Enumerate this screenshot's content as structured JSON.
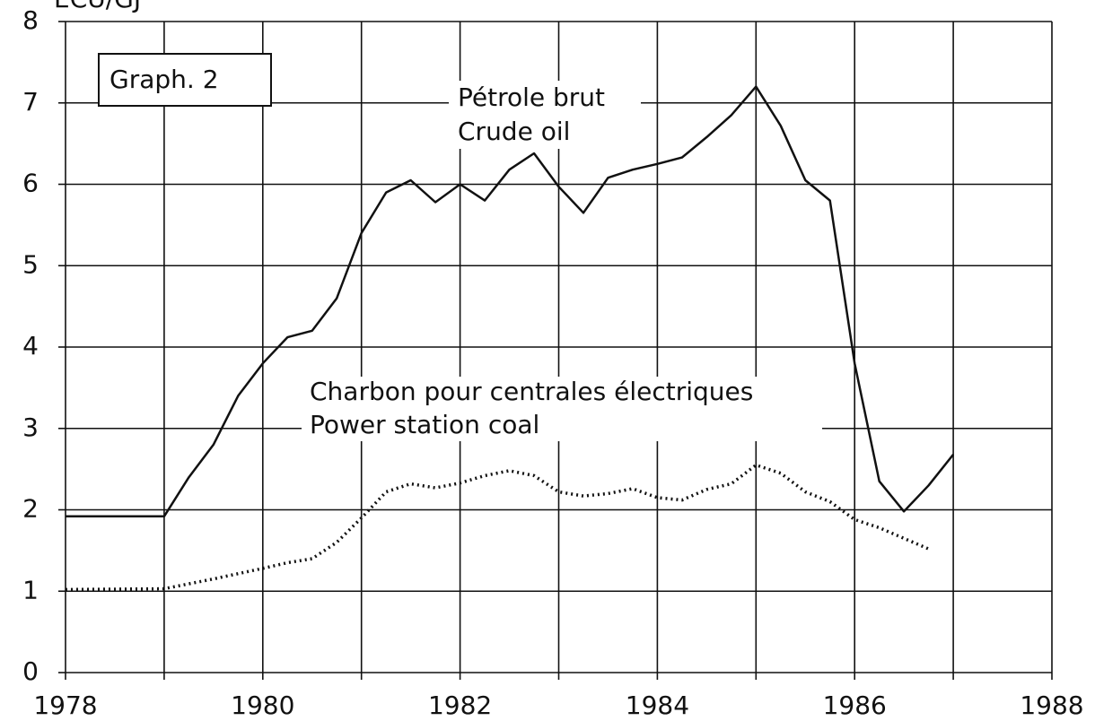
{
  "chart_data": {
    "type": "line",
    "y_label": "ECU/GJ",
    "annotations": [
      "Graph. 2",
      "Pétrole brut",
      "Crude oil",
      "Charbon pour centrales électriques",
      "Power station coal"
    ],
    "xlim": [
      1978,
      1988
    ],
    "xticks": [
      1978,
      1980,
      1982,
      1984,
      1986,
      1988
    ],
    "xgrid": [
      1978,
      1979,
      1980,
      1981,
      1982,
      1983,
      1984,
      1985,
      1986,
      1987,
      1988
    ],
    "ylim": [
      0,
      8
    ],
    "yticks": [
      0,
      1,
      2,
      3,
      4,
      5,
      6,
      7,
      8
    ],
    "grid": true,
    "series": [
      {
        "name": "Crude oil",
        "color": "#111111",
        "style": "solid",
        "x": [
          1978,
          1979,
          1979.25,
          1979.5,
          1979.75,
          1980,
          1980.25,
          1980.5,
          1980.75,
          1981,
          1981.25,
          1981.5,
          1981.75,
          1982,
          1982.25,
          1982.5,
          1982.75,
          1983,
          1983.25,
          1983.5,
          1983.75,
          1984,
          1984.25,
          1984.5,
          1984.75,
          1985,
          1985.25,
          1985.5,
          1985.75,
          1986,
          1986.25,
          1986.5,
          1986.75,
          1987
        ],
        "values": [
          1.92,
          1.92,
          2.4,
          2.8,
          3.4,
          3.8,
          4.12,
          4.2,
          4.6,
          5.4,
          5.9,
          6.05,
          5.78,
          6.0,
          5.8,
          6.18,
          6.38,
          5.97,
          5.65,
          6.08,
          6.18,
          6.25,
          6.33,
          6.58,
          6.85,
          7.2,
          6.72,
          6.05,
          5.8,
          3.8,
          2.35,
          1.98,
          2.3,
          2.68
        ]
      },
      {
        "name": "Power station coal",
        "color": "#111111",
        "style": "dotted",
        "x": [
          1978,
          1979,
          1979.5,
          1980,
          1980.25,
          1980.5,
          1980.75,
          1981,
          1981.25,
          1981.5,
          1981.75,
          1982,
          1982.25,
          1982.5,
          1982.75,
          1983,
          1983.25,
          1983.5,
          1983.75,
          1984,
          1984.25,
          1984.5,
          1984.75,
          1985,
          1985.25,
          1985.5,
          1985.75,
          1986,
          1986.25,
          1986.5,
          1986.75
        ],
        "values": [
          1.02,
          1.03,
          1.15,
          1.28,
          1.35,
          1.4,
          1.6,
          1.9,
          2.22,
          2.32,
          2.27,
          2.33,
          2.42,
          2.48,
          2.42,
          2.22,
          2.17,
          2.2,
          2.26,
          2.15,
          2.12,
          2.25,
          2.32,
          2.55,
          2.45,
          2.22,
          2.1,
          1.88,
          1.78,
          1.65,
          1.52
        ]
      }
    ]
  }
}
